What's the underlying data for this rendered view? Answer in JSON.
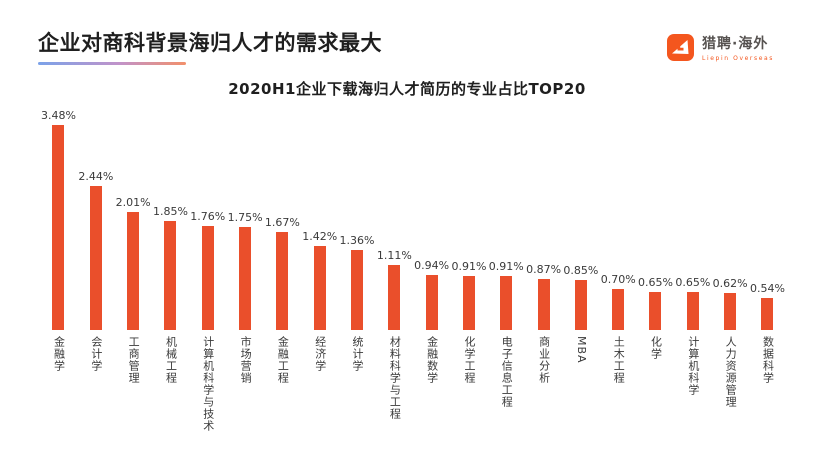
{
  "page": {
    "title": "企业对商科背景海归人才的需求最大",
    "logo": {
      "brand": "猎聘·海外",
      "subtext": "Liepin Overseas"
    },
    "colors": {
      "bar": "#EA4F2B",
      "title_text": "#1F1F1F",
      "underline_gradient_start": "#7BA2E9",
      "underline_gradient_end": "#F2906B",
      "logo_orange": "#F4561E"
    }
  },
  "chart_data": {
    "type": "bar",
    "title": "2020H1企业下载海归人才简历的专业占比TOP20",
    "orientation": "vertical",
    "unit": "%",
    "grid": false,
    "legend": false,
    "category_label_style": "vertical-text",
    "ylim": [
      0,
      3.6
    ],
    "categories": [
      "金融学",
      "会计学",
      "工商管理",
      "机械工程",
      "计算机科学与技术",
      "市场营销",
      "金融工程",
      "经济学",
      "统计学",
      "材料科学与工程",
      "金融数学",
      "化学工程",
      "电子信息工程",
      "商业分析",
      "MBA",
      "土木工程",
      "化学",
      "计算机科学",
      "人力资源管理",
      "数据科学"
    ],
    "values": [
      3.48,
      2.44,
      2.01,
      1.85,
      1.76,
      1.75,
      1.67,
      1.42,
      1.36,
      1.11,
      0.94,
      0.91,
      0.91,
      0.87,
      0.85,
      0.7,
      0.65,
      0.65,
      0.62,
      0.54
    ],
    "data_labels": [
      "3.48%",
      "2.44%",
      "2.01%",
      "1.85%",
      "1.76%",
      "1.75%",
      "1.67%",
      "1.42%",
      "1.36%",
      "1.11%",
      "0.94%",
      "0.91%",
      "0.91%",
      "0.87%",
      "0.85%",
      "0.70%",
      "0.65%",
      "0.65%",
      "0.62%",
      "0.54%"
    ]
  }
}
